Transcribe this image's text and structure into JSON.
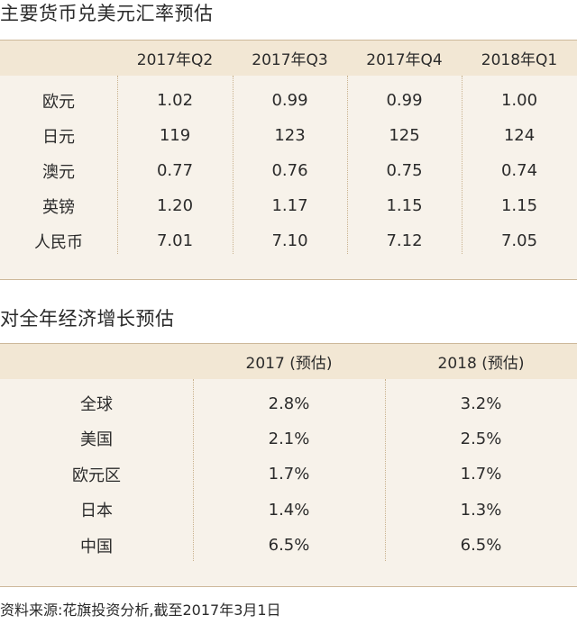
{
  "fx_section": {
    "title": "主要货币兑美元汇率预估",
    "headers": [
      "",
      "2017年Q2",
      "2017年Q3",
      "2017年Q4",
      "2018年Q1"
    ],
    "rows": [
      {
        "label": "欧元",
        "values": [
          "1.02",
          "0.99",
          "0.99",
          "1.00"
        ]
      },
      {
        "label": "日元",
        "values": [
          "119",
          "123",
          "125",
          "124"
        ]
      },
      {
        "label": "澳元",
        "values": [
          "0.77",
          "0.76",
          "0.75",
          "0.74"
        ]
      },
      {
        "label": "英镑",
        "values": [
          "1.20",
          "1.17",
          "1.15",
          "1.15"
        ]
      },
      {
        "label": "人民币",
        "values": [
          "7.01",
          "7.10",
          "7.12",
          "7.05"
        ]
      }
    ]
  },
  "gdp_section": {
    "title": "对全年经济增长预估",
    "headers": [
      "",
      "2017 (预估)",
      "2018 (预估)"
    ],
    "rows": [
      {
        "label": "全球",
        "values": [
          "2.8%",
          "3.2%"
        ]
      },
      {
        "label": "美国",
        "values": [
          "2.1%",
          "2.5%"
        ]
      },
      {
        "label": "欧元区",
        "values": [
          "1.7%",
          "1.7%"
        ]
      },
      {
        "label": "日本",
        "values": [
          "1.4%",
          "1.3%"
        ]
      },
      {
        "label": "中国",
        "values": [
          "6.5%",
          "6.5%"
        ]
      }
    ]
  },
  "source": "资料来源:花旗投资分析,截至2017年3月1日",
  "colors": {
    "header_bg": "#f2e7d4",
    "body_bg": "#f7f2ea",
    "divider": "#c9b28e"
  }
}
